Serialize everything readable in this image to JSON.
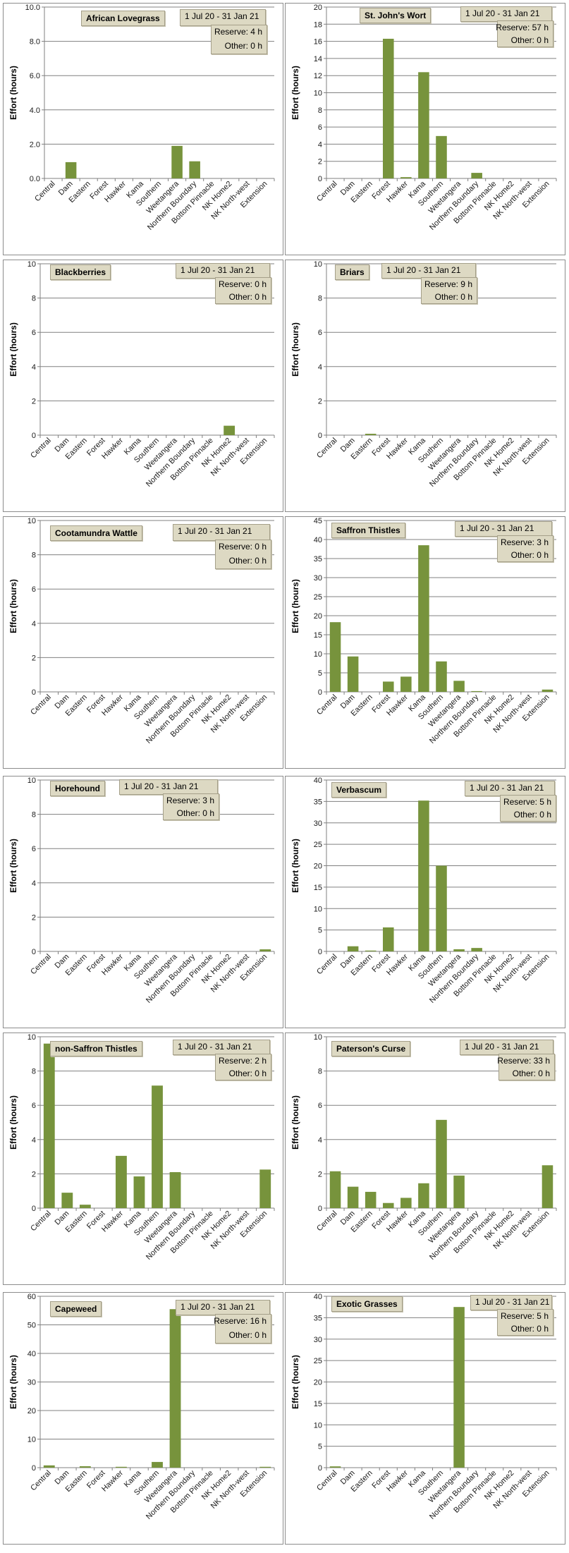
{
  "chart_data": [
    {
      "type": "bar",
      "title": "African Lovegrass",
      "date_range": "1 Jul 20  -  31 Jan 21",
      "reserve": "Reserve: 4 h",
      "other": "Other: 0 h",
      "ylabel": "Effort  (hours)",
      "ylim": [
        0,
        10
      ],
      "yticks": [
        "0.0",
        "2.0",
        "4.0",
        "6.0",
        "8.0",
        "10.0"
      ],
      "categories": [
        "Central",
        "Dam",
        "Eastern",
        "Forest",
        "Hawker",
        "Kama",
        "Southern",
        "Weetangera",
        "Northern Boundary",
        "Bottom Pinnacle",
        "NK Home2",
        "NK North-west",
        "Extension"
      ],
      "values": [
        0,
        0.95,
        0,
        0,
        0,
        0,
        0,
        1.9,
        1.0,
        0,
        0,
        0,
        0
      ],
      "bar_color": "#77933c"
    },
    {
      "type": "bar",
      "title": "St. John's Wort",
      "date_range": "1 Jul 20  -  31 Jan 21",
      "reserve": "Reserve: 57 h",
      "other": "Other: 0 h",
      "ylabel": "Effort  (hours)",
      "ylim": [
        0,
        20
      ],
      "yticks": [
        "0",
        "2",
        "4",
        "6",
        "8",
        "10",
        "12",
        "14",
        "16",
        "18",
        "20"
      ],
      "categories": [
        "Central",
        "Dam",
        "Eastern",
        "Forest",
        "Hawker",
        "Kama",
        "Southern",
        "Weetangera",
        "Northern Boundary",
        "Bottom Pinnacle",
        "NK Home2",
        "NK North-west",
        "Extension"
      ],
      "values": [
        0,
        0,
        0,
        16.3,
        0.15,
        12.4,
        4.95,
        0,
        0.65,
        0,
        0,
        0,
        0
      ],
      "bar_color": "#77933c"
    },
    {
      "type": "bar",
      "title": "Blackberries",
      "date_range": "1 Jul 20  -  31 Jan 21",
      "reserve": "Reserve: 0 h",
      "other": "Other: 0 h",
      "ylabel": "Effort  (hours)",
      "ylim": [
        0,
        10
      ],
      "yticks": [
        "0",
        "2",
        "4",
        "6",
        "8",
        "10"
      ],
      "categories": [
        "Central",
        "Dam",
        "Eastern",
        "Forest",
        "Hawker",
        "Kama",
        "Southern",
        "Weetangera",
        "Northern Boundary",
        "Bottom Pinnacle",
        "NK Home2",
        "NK North-west",
        "Extension"
      ],
      "values": [
        0,
        0,
        0,
        0,
        0,
        0,
        0,
        0,
        0,
        0,
        0.55,
        0,
        0
      ],
      "bar_color": "#77933c"
    },
    {
      "type": "bar",
      "title": "Briars",
      "date_range": "1 Jul 20  -  31 Jan 21",
      "reserve": "Reserve: 9 h",
      "other": "Other: 0 h",
      "ylabel": "Effort  (hours)",
      "ylim": [
        0,
        10
      ],
      "yticks": [
        "0",
        "2",
        "4",
        "6",
        "8",
        "10"
      ],
      "categories": [
        "Central",
        "Dam",
        "Eastern",
        "Forest",
        "Hawker",
        "Kama",
        "Southern",
        "Weetangera",
        "Northern Boundary",
        "Bottom Pinnacle",
        "NK Home2",
        "NK North-west",
        "Extension"
      ],
      "values": [
        0,
        0,
        0.08,
        0,
        0,
        0,
        0,
        0,
        0,
        0,
        0,
        0,
        0
      ],
      "bar_color": "#77933c"
    },
    {
      "type": "bar",
      "title": "Cootamundra Wattle",
      "date_range": "1 Jul 20  -  31 Jan 21",
      "reserve": "Reserve: 0 h",
      "other": "Other: 0 h",
      "ylabel": "Effort  (hours)",
      "ylim": [
        0,
        10
      ],
      "yticks": [
        "0",
        "2",
        "4",
        "6",
        "8",
        "10"
      ],
      "categories": [
        "Central",
        "Dam",
        "Eastern",
        "Forest",
        "Hawker",
        "Kama",
        "Southern",
        "Weetangera",
        "Northern Boundary",
        "Bottom Pinnacle",
        "NK Home2",
        "NK North-west",
        "Extension"
      ],
      "values": [
        0,
        0,
        0,
        0,
        0,
        0,
        0,
        0,
        0,
        0,
        0,
        0,
        0
      ],
      "bar_color": "#77933c"
    },
    {
      "type": "bar",
      "title": "Saffron Thistles",
      "date_range": "1 Jul 20  -  31 Jan 21",
      "reserve": "Reserve: 3 h",
      "other": "Other: 0 h",
      "ylabel": "Effort  (hours)",
      "ylim": [
        0,
        45
      ],
      "yticks": [
        "0",
        "5",
        "10",
        "15",
        "20",
        "25",
        "30",
        "35",
        "40",
        "45"
      ],
      "categories": [
        "Central",
        "Dam",
        "Eastern",
        "Forest",
        "Hawker",
        "Kama",
        "Southern",
        "Weetangera",
        "Northern Boundary",
        "Bottom Pinnacle",
        "NK Home2",
        "NK North-west",
        "Extension"
      ],
      "values": [
        18.3,
        9.3,
        0,
        2.7,
        4.0,
        38.5,
        8.0,
        2.9,
        0.2,
        0,
        0,
        0,
        0.6
      ],
      "bar_color": "#77933c"
    },
    {
      "type": "bar",
      "title": "Horehound",
      "date_range": "1 Jul 20  -  31 Jan 21",
      "reserve": "Reserve: 3 h",
      "other": "Other: 0 h",
      "ylabel": "Effort  (hours)",
      "ylim": [
        0,
        10
      ],
      "yticks": [
        "0",
        "2",
        "4",
        "6",
        "8",
        "10"
      ],
      "categories": [
        "Central",
        "Dam",
        "Eastern",
        "Forest",
        "Hawker",
        "Kama",
        "Southern",
        "Weetangera",
        "Northern Boundary",
        "Bottom Pinnacle",
        "NK Home2",
        "NK North-west",
        "Extension"
      ],
      "values": [
        0,
        0,
        0,
        0,
        0,
        0,
        0,
        0,
        0,
        0,
        0,
        0,
        0.12
      ],
      "bar_color": "#77933c"
    },
    {
      "type": "bar",
      "title": "Verbascum",
      "date_range": "1 Jul 20  -  31 Jan 21",
      "reserve": "Reserve: 5 h",
      "other": "Other: 0 h",
      "ylabel": "Effort  (hours)",
      "ylim": [
        0,
        40
      ],
      "yticks": [
        "0",
        "5",
        "10",
        "15",
        "20",
        "25",
        "30",
        "35",
        "40"
      ],
      "categories": [
        "Central",
        "Dam",
        "Eastern",
        "Forest",
        "Hawker",
        "Kama",
        "Southern",
        "Weetangera",
        "Northern Boundary",
        "Bottom Pinnacle",
        "NK Home2",
        "NK North-west",
        "Extension"
      ],
      "values": [
        0,
        1.2,
        0.2,
        5.6,
        0,
        35.2,
        20.0,
        0.5,
        0.8,
        0,
        0,
        0,
        0
      ],
      "bar_color": "#77933c"
    },
    {
      "type": "bar",
      "title": "non-Saffron Thistles",
      "date_range": "1 Jul 20  -  31 Jan 21",
      "reserve": "Reserve: 2 h",
      "other": "Other: 0 h",
      "ylabel": "Effort  (hours)",
      "ylim": [
        0,
        10
      ],
      "yticks": [
        "0",
        "2",
        "4",
        "6",
        "8",
        "10"
      ],
      "categories": [
        "Central",
        "Dam",
        "Eastern",
        "Forest",
        "Hawker",
        "Kama",
        "Southern",
        "Weetangera",
        "Northern Boundary",
        "Bottom Pinnacle",
        "NK Home2",
        "NK North-west",
        "Extension"
      ],
      "values": [
        9.6,
        0.9,
        0.2,
        0,
        3.05,
        1.85,
        7.15,
        2.1,
        0,
        0,
        0,
        0,
        2.25
      ],
      "bar_color": "#77933c"
    },
    {
      "type": "bar",
      "title": "Paterson's Curse",
      "date_range": "1 Jul 20  -  31 Jan 21",
      "reserve": "Reserve: 33 h",
      "other": "Other: 0 h",
      "ylabel": "Effort  (hours)",
      "ylim": [
        0,
        10
      ],
      "yticks": [
        "0",
        "2",
        "4",
        "6",
        "8",
        "10"
      ],
      "categories": [
        "Central",
        "Dam",
        "Eastern",
        "Forest",
        "Hawker",
        "Kama",
        "Southern",
        "Weetangera",
        "Northern Boundary",
        "Bottom Pinnacle",
        "NK Home2",
        "NK North-west",
        "Extension"
      ],
      "values": [
        2.15,
        1.25,
        0.95,
        0.3,
        0.6,
        1.45,
        5.15,
        1.9,
        0,
        0,
        0,
        0,
        2.5
      ],
      "bar_color": "#77933c"
    },
    {
      "type": "bar",
      "title": "Capeweed",
      "date_range": "1 Jul 20  -  31 Jan 21",
      "reserve": "Reserve: 16 h",
      "other": "Other: 0 h",
      "ylabel": "Effort  (hours)",
      "ylim": [
        0,
        60
      ],
      "yticks": [
        "0",
        "10",
        "20",
        "30",
        "40",
        "50",
        "60"
      ],
      "categories": [
        "Central",
        "Dam",
        "Eastern",
        "Forest",
        "Hawker",
        "Kama",
        "Southern",
        "Weetangera",
        "Northern Boundary",
        "Bottom Pinnacle",
        "NK Home2",
        "NK North-west",
        "Extension"
      ],
      "values": [
        0.8,
        0,
        0.5,
        0,
        0.3,
        0,
        2.0,
        55.5,
        0,
        0,
        0,
        0,
        0.3
      ],
      "bar_color": "#77933c"
    },
    {
      "type": "bar",
      "title": "Exotic Grasses",
      "date_range": "1 Jul 20  -  31 Jan 21",
      "reserve": "Reserve: 5 h",
      "other": "Other: 0 h",
      "ylabel": "Effort  (hours)",
      "ylim": [
        0,
        40
      ],
      "yticks": [
        "0",
        "5",
        "10",
        "15",
        "20",
        "25",
        "30",
        "35",
        "40"
      ],
      "categories": [
        "Central",
        "Dam",
        "Eastern",
        "Forest",
        "Hawker",
        "Kama",
        "Southern",
        "Weetangera",
        "Northern Boundary",
        "Bottom Pinnacle",
        "NK Home2",
        "NK North-west",
        "Extension"
      ],
      "values": [
        0.3,
        0,
        0,
        0,
        0,
        0,
        0,
        37.5,
        0,
        0,
        0,
        0,
        0
      ],
      "bar_color": "#77933c"
    }
  ]
}
